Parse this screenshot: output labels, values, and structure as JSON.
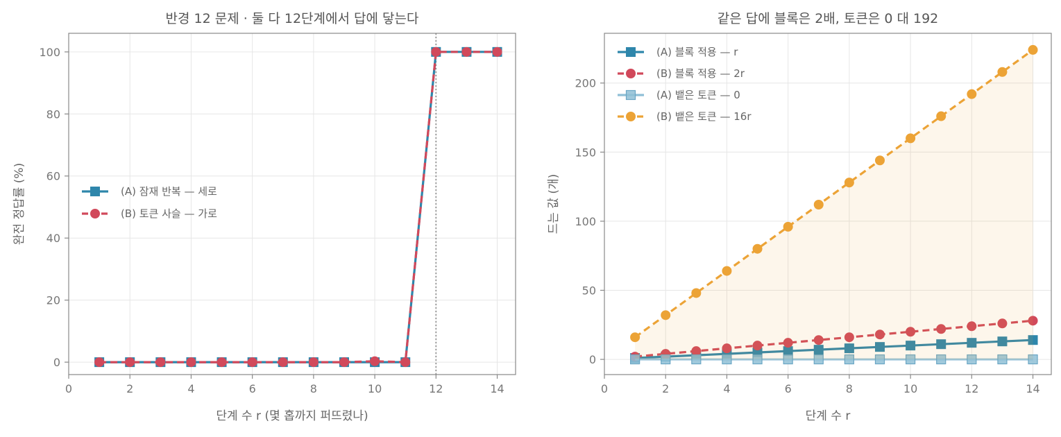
{
  "chart_data": [
    {
      "type": "line",
      "title": "반경 12 문제 · 둘 다 12단계에서 답에 닿는다",
      "xlabel": "단계 수 r  (몇 홉까지 퍼뜨렸나)",
      "ylabel": "완전 정답률 (%)",
      "xlim": [
        0,
        14.6
      ],
      "ylim": [
        -4,
        106
      ],
      "xticks": [
        0,
        2,
        4,
        6,
        8,
        10,
        12,
        14
      ],
      "yticks": [
        0,
        20,
        40,
        60,
        80,
        100
      ],
      "vline_x": 12,
      "grid": true,
      "legend_position": "center-left",
      "x": [
        1,
        2,
        3,
        4,
        5,
        6,
        7,
        8,
        9,
        10,
        11,
        12,
        13,
        14
      ],
      "series": [
        {
          "name": "(A) 잠재 반복 — 세로",
          "color": "#2e86ab",
          "style": "solid",
          "marker": "square",
          "values": [
            0,
            0,
            0,
            0,
            0,
            0,
            0,
            0,
            0,
            0,
            0,
            100,
            100,
            100
          ]
        },
        {
          "name": "(B) 토큰 사슬 — 가로",
          "color": "#d1495b",
          "style": "dashed",
          "marker": "circle",
          "values": [
            0,
            0,
            0,
            0,
            0,
            0,
            0,
            0,
            0,
            0.3,
            0,
            100,
            100,
            100
          ]
        }
      ]
    },
    {
      "type": "line",
      "title": "같은 답에 블록은 2배, 토큰은 0 대 192",
      "xlabel": "단계 수 r",
      "ylabel": "드는 값 (개)",
      "xlim": [
        0,
        14.6
      ],
      "ylim": [
        -11,
        236
      ],
      "xticks": [
        0,
        2,
        4,
        6,
        8,
        10,
        12,
        14
      ],
      "yticks": [
        0,
        50,
        100,
        150,
        200
      ],
      "grid": true,
      "legend_position": "top-left",
      "x": [
        1,
        2,
        3,
        4,
        5,
        6,
        7,
        8,
        9,
        10,
        11,
        12,
        13,
        14
      ],
      "series": [
        {
          "name": "(A) 블록 적용 — r",
          "color": "#2e86ab",
          "style": "solid",
          "marker": "square",
          "values": [
            1,
            2,
            3,
            4,
            5,
            6,
            7,
            8,
            9,
            10,
            11,
            12,
            13,
            14
          ]
        },
        {
          "name": "(B) 블록 적용 — 2r",
          "color": "#d1495b",
          "style": "dashed",
          "marker": "circle",
          "values": [
            2,
            4,
            6,
            8,
            10,
            12,
            14,
            16,
            18,
            20,
            22,
            24,
            26,
            28
          ]
        },
        {
          "name": "(A) 뱉은 토큰 — 0",
          "color": "#8fbfd6",
          "style": "solid",
          "marker": "square-light",
          "values": [
            0,
            0,
            0,
            0,
            0,
            0,
            0,
            0,
            0,
            0,
            0,
            0,
            0,
            0
          ]
        },
        {
          "name": "(B) 뱉은 토큰 — 16r",
          "color": "#eca336",
          "style": "dashed",
          "marker": "circle",
          "fill": true,
          "values": [
            16,
            32,
            48,
            64,
            80,
            96,
            112,
            128,
            144,
            160,
            176,
            192,
            208,
            224
          ]
        }
      ]
    }
  ]
}
